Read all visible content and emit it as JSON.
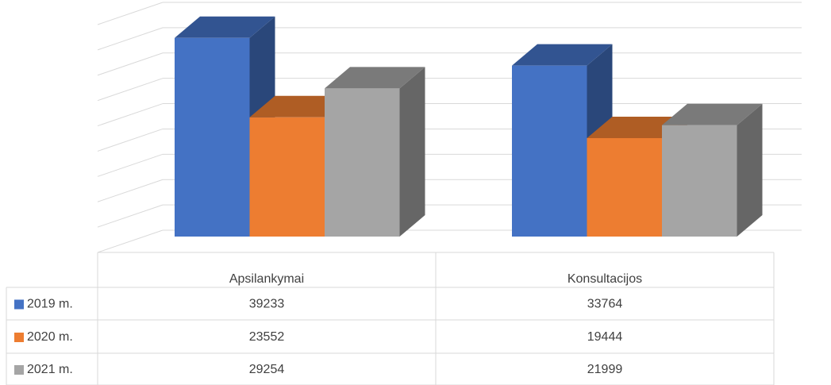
{
  "chart_data": {
    "type": "bar3d",
    "categories": [
      "Apsilankymai",
      "Konsultacijos"
    ],
    "series": [
      {
        "name": "2019 m.",
        "color": "#4472c4",
        "values": [
          39233,
          33764
        ]
      },
      {
        "name": "2020 m.",
        "color": "#ed7d31",
        "values": [
          23552,
          19444
        ]
      },
      {
        "name": "2021 m.",
        "color": "#a5a5a5",
        "values": [
          29254,
          21999
        ]
      }
    ],
    "ylim": [
      0,
      45000
    ],
    "yticks": [
      0,
      5000,
      10000,
      15000,
      20000,
      25000,
      30000,
      35000,
      40000,
      45000
    ],
    "grid": true
  }
}
